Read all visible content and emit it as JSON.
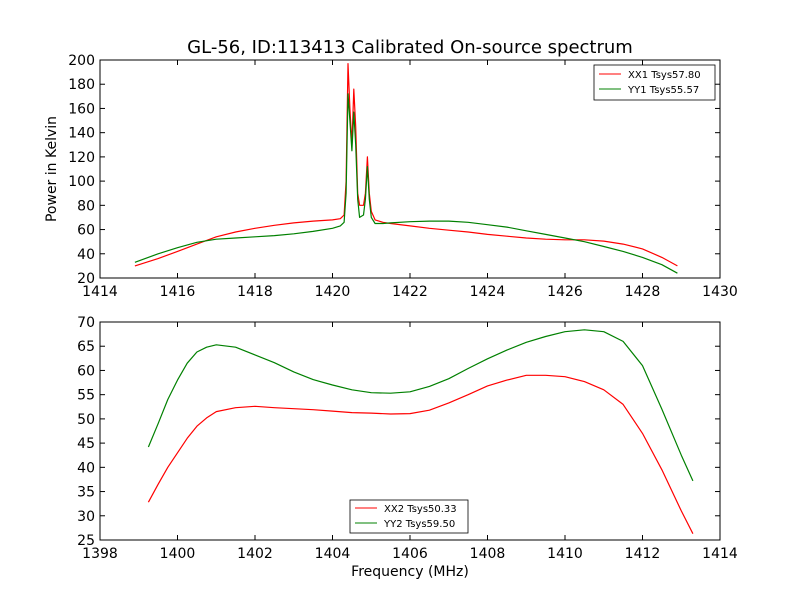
{
  "chart_data": [
    {
      "type": "line",
      "title": "GL-56, ID:113413 Calibrated On-source spectrum",
      "xlabel": "",
      "ylabel": "Power in Kelvin",
      "xlim": [
        1414,
        1430
      ],
      "ylim": [
        20,
        200
      ],
      "xticks": [
        "1414",
        "1416",
        "1418",
        "1420",
        "1422",
        "1424",
        "1426",
        "1428",
        "1430"
      ],
      "yticks": [
        "20",
        "40",
        "60",
        "80",
        "100",
        "120",
        "140",
        "160",
        "180",
        "200"
      ],
      "grid": false,
      "legend_position": "top-right",
      "series": [
        {
          "name": "XX1 Tsys57.80",
          "color": "#ff0000",
          "x": [
            1414.9,
            1415.5,
            1416,
            1416.5,
            1417,
            1417.5,
            1418,
            1418.5,
            1419,
            1419.5,
            1420,
            1420.2,
            1420.3,
            1420.35,
            1420.4,
            1420.45,
            1420.5,
            1420.55,
            1420.6,
            1420.65,
            1420.7,
            1420.8,
            1420.85,
            1420.9,
            1420.95,
            1421.0,
            1421.1,
            1421.3,
            1421.5,
            1422,
            1422.5,
            1423,
            1423.5,
            1424,
            1424.5,
            1425,
            1425.5,
            1426,
            1426.5,
            1427,
            1427.5,
            1428,
            1428.5,
            1428.9
          ],
          "y": [
            30,
            36,
            42,
            48,
            54,
            58,
            61,
            63.5,
            65.5,
            67,
            68,
            69,
            72,
            100,
            197,
            160,
            130,
            176,
            145,
            90,
            80,
            80,
            90,
            120,
            90,
            75,
            68,
            66,
            65,
            63,
            61,
            59.5,
            58,
            56,
            54.5,
            53,
            52,
            51.5,
            51.5,
            50.5,
            48,
            44,
            37,
            30
          ]
        },
        {
          "name": "YY1 Tsys55.57",
          "color": "#008000",
          "x": [
            1414.9,
            1415.5,
            1416,
            1416.5,
            1417,
            1417.5,
            1418,
            1418.5,
            1419,
            1419.5,
            1420,
            1420.2,
            1420.3,
            1420.35,
            1420.4,
            1420.45,
            1420.5,
            1420.55,
            1420.6,
            1420.65,
            1420.7,
            1420.8,
            1420.85,
            1420.9,
            1420.95,
            1421.0,
            1421.1,
            1421.3,
            1421.5,
            1422,
            1422.5,
            1423,
            1423.5,
            1424,
            1424.5,
            1425,
            1425.5,
            1426,
            1426.5,
            1427,
            1427.5,
            1428,
            1428.5,
            1428.9
          ],
          "y": [
            33,
            40,
            45,
            49.5,
            52,
            53,
            54,
            55,
            56.5,
            58.5,
            61,
            63,
            66,
            90,
            172,
            150,
            125,
            157,
            130,
            85,
            70,
            72,
            85,
            112,
            85,
            70,
            65,
            65,
            65.5,
            66.5,
            67,
            67,
            66,
            64,
            62,
            59,
            56,
            53,
            50,
            46,
            42,
            37,
            31,
            24
          ]
        }
      ]
    },
    {
      "type": "line",
      "title": "",
      "xlabel": "Frequency (MHz)",
      "ylabel": "",
      "xlim": [
        1398,
        1414
      ],
      "ylim": [
        25,
        70
      ],
      "xticks": [
        "1398",
        "1400",
        "1402",
        "1404",
        "1406",
        "1408",
        "1410",
        "1412",
        "1414"
      ],
      "yticks": [
        "25",
        "30",
        "35",
        "40",
        "45",
        "50",
        "55",
        "60",
        "65",
        "70"
      ],
      "grid": false,
      "legend_position": "bottom-center",
      "series": [
        {
          "name": "XX2 Tsys50.33",
          "color": "#ff0000",
          "x": [
            1399.25,
            1399.5,
            1399.75,
            1400,
            1400.25,
            1400.5,
            1400.75,
            1401,
            1401.5,
            1402,
            1402.5,
            1403,
            1403.5,
            1404,
            1404.5,
            1405,
            1405.5,
            1406,
            1406.5,
            1407,
            1407.5,
            1408,
            1408.5,
            1409,
            1409.5,
            1410,
            1410.5,
            1411,
            1411.5,
            1412,
            1412.5,
            1413,
            1413.3
          ],
          "y": [
            32.8,
            36.5,
            40,
            43,
            46,
            48.5,
            50.2,
            51.5,
            52.3,
            52.6,
            52.3,
            52.1,
            51.9,
            51.6,
            51.3,
            51.2,
            51.0,
            51.1,
            51.8,
            53.3,
            55.0,
            56.8,
            58.0,
            59.0,
            59.0,
            58.7,
            57.7,
            56.0,
            53.0,
            47.0,
            39.5,
            31.0,
            26.3
          ]
        },
        {
          "name": "YY2 Tsys59.50",
          "color": "#008000",
          "x": [
            1399.25,
            1399.5,
            1399.75,
            1400,
            1400.25,
            1400.5,
            1400.75,
            1401,
            1401.5,
            1402,
            1402.5,
            1403,
            1403.5,
            1404,
            1404.5,
            1405,
            1405.5,
            1406,
            1406.5,
            1407,
            1407.5,
            1408,
            1408.5,
            1409,
            1409.5,
            1410,
            1410.5,
            1411,
            1411.5,
            1412,
            1412.5,
            1413,
            1413.3
          ],
          "y": [
            44.2,
            49,
            54,
            58,
            61.5,
            63.8,
            64.8,
            65.3,
            64.8,
            63.2,
            61.6,
            59.7,
            58.1,
            57.0,
            56.0,
            55.4,
            55.3,
            55.6,
            56.7,
            58.3,
            60.4,
            62.4,
            64.2,
            65.8,
            67.0,
            68.0,
            68.4,
            68.0,
            66.0,
            61.0,
            52.0,
            42.5,
            37.2
          ]
        }
      ]
    }
  ]
}
